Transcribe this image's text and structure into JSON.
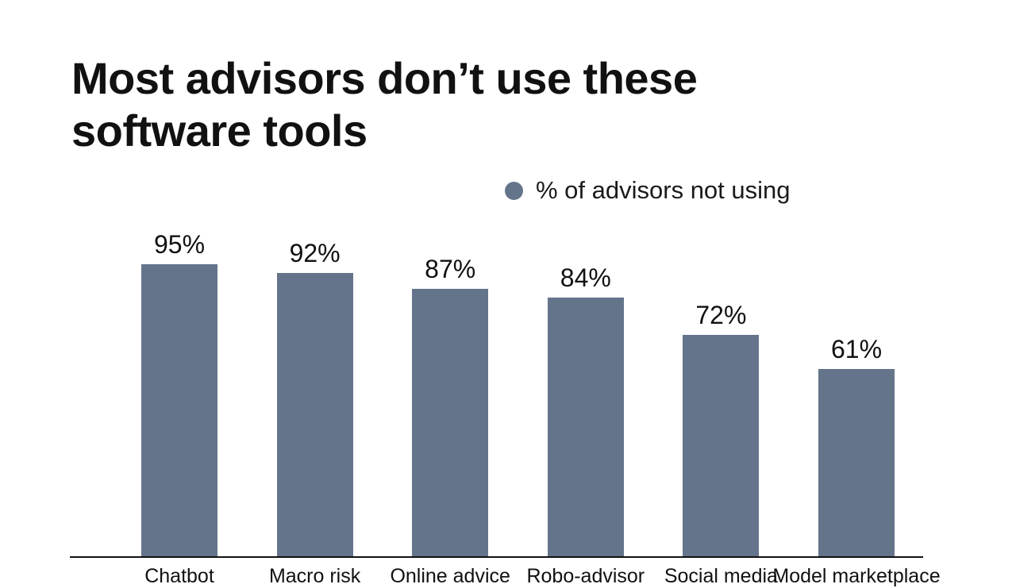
{
  "page": {
    "title": "Most advisors don’t use these software tools"
  },
  "colors": {
    "bar": "#64748B",
    "background": "#FFFFFF",
    "text": "#111111",
    "axis": "#111111"
  },
  "chart_data": {
    "type": "bar",
    "title": "Most advisors don’t use these software tools",
    "legend": "% of advisors not using",
    "legend_position": "top-center",
    "categories": [
      "Chatbot",
      "Macro risk",
      "Online advice",
      "Robo-advisor",
      "Social media",
      "Model marketplace"
    ],
    "values": [
      95,
      92,
      87,
      84,
      72,
      61
    ],
    "value_labels": [
      "95%",
      "92%",
      "87%",
      "84%",
      "72%",
      "61%"
    ],
    "ylim": [
      0,
      100
    ],
    "grid": false,
    "xlabel": "",
    "ylabel": ""
  }
}
